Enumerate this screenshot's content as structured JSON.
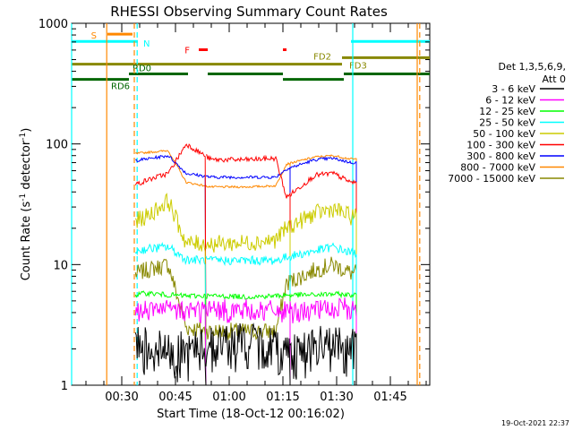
{
  "chart_data": {
    "type": "line",
    "title": "RHESSI Observing Summary Count Rates",
    "xlabel": "Start Time (18-Oct-12 00:16:02)",
    "ylabel_main": "Count Rate (s",
    "ylabel_sup1": "-1",
    "ylabel_mid": " detector",
    "ylabel_sup2": "-1",
    "ylabel_end": ")",
    "yscale": "log",
    "ylim": [
      1,
      1000
    ],
    "xlim_minutes": [
      16.0,
      116.0
    ],
    "x_ticks": [
      {
        "t": 30,
        "label": "00:30"
      },
      {
        "t": 45,
        "label": "00:45"
      },
      {
        "t": 60,
        "label": "01:00"
      },
      {
        "t": 75,
        "label": "01:15"
      },
      {
        "t": 90,
        "label": "01:30"
      },
      {
        "t": 105,
        "label": "01:45"
      }
    ],
    "y_ticks": [
      {
        "v": 1,
        "label": "1"
      },
      {
        "v": 10,
        "label": "10"
      },
      {
        "v": 100,
        "label": "100"
      },
      {
        "v": 1000,
        "label": "1000"
      }
    ],
    "legend_title1": "Det 1,3,5,6,9,",
    "legend_title2": "Att 0",
    "series": [
      {
        "name": "3 - 6 keV",
        "color": "#000000",
        "values": [
          2.2,
          2.2,
          1.9,
          1.9,
          2.2,
          2.3,
          2.1,
          1.9,
          2.1,
          2.2,
          2.0
        ]
      },
      {
        "name": "6 - 12 keV",
        "color": "#ff00ff",
        "values": [
          4.2,
          4.3,
          4.2,
          4.2,
          4.2,
          4.2,
          4.2,
          4.1,
          4.2,
          4.3,
          4.3
        ]
      },
      {
        "name": "12 - 25 keV",
        "color": "#00ff00",
        "values": [
          5.5,
          5.8,
          5.6,
          5.5,
          5.5,
          5.4,
          5.5,
          5.6,
          5.6,
          5.7,
          5.6
        ]
      },
      {
        "name": "25 - 50 keV",
        "color": "#00ffff",
        "values": [
          12.5,
          13.5,
          14.0,
          11.0,
          10.8,
          10.8,
          10.8,
          11.5,
          13.0,
          14.0,
          12.5
        ]
      },
      {
        "name": "50 - 100 keV",
        "color": "#cccc00",
        "values": [
          22.0,
          25.0,
          34.0,
          15.0,
          14.8,
          15.2,
          16.0,
          20.0,
          26.5,
          29.0,
          25.0
        ]
      },
      {
        "name": "100 - 300 keV",
        "color": "#ff0000",
        "values": [
          44.0,
          50.0,
          57.0,
          100.0,
          74.0,
          74.0,
          76.0,
          36.0,
          55.0,
          57.0,
          48.0
        ]
      },
      {
        "name": "300 - 800 keV",
        "color": "#0000ff",
        "values": [
          72.0,
          75.0,
          80.0,
          57.0,
          53.0,
          53.0,
          53.0,
          62.0,
          74.0,
          76.0,
          70.0
        ]
      },
      {
        "name": "800 - 7000 keV",
        "color": "#ff8800",
        "values": [
          82.0,
          85.0,
          88.0,
          48.0,
          44.0,
          44.0,
          45.0,
          68.0,
          78.0,
          80.0,
          75.0
        ]
      },
      {
        "name": "7000 - 15000 keV",
        "color": "#888800",
        "values": [
          8.0,
          9.0,
          10.0,
          3.0,
          2.8,
          2.8,
          2.8,
          7.0,
          9.0,
          10.0,
          8.5
        ]
      }
    ],
    "series_x_minutes": [
      32,
      37,
      43,
      48,
      55,
      65,
      73,
      76,
      84,
      89,
      94
    ],
    "event_labels": {
      "saa": "S",
      "night": "N",
      "flare": "F",
      "fd2": "FD2",
      "fd3": "FD3",
      "rd0": "RD0",
      "rd6": "RD6"
    },
    "bars": [
      {
        "key": "saa",
        "color": "#ff8800",
        "t0": 26.0,
        "t1": 33.0,
        "y": 0.03
      },
      {
        "key": "night",
        "color": "#00ffff",
        "t0": 16.0,
        "t1": 34.5,
        "y": 0.05
      },
      {
        "key": "night",
        "color": "#00ffff",
        "t0": 94.0,
        "t1": 116.0,
        "y": 0.05
      },
      {
        "key": "flare",
        "color": "#ff0000",
        "t0": 51.5,
        "t1": 54.0,
        "y": 0.073
      },
      {
        "key": "flare",
        "color": "#ff0000",
        "t0": 75.0,
        "t1": 76.0,
        "y": 0.073
      },
      {
        "key": "fd2",
        "color": "#888800",
        "t0": 16.0,
        "t1": 91.5,
        "y": 0.113
      },
      {
        "key": "fd3",
        "color": "#888800",
        "t0": 91.5,
        "t1": 116.0,
        "y": 0.095
      },
      {
        "key": "rd0",
        "color": "#006600",
        "t0": 32.0,
        "t1": 48.5,
        "y": 0.14
      },
      {
        "key": "rd0",
        "color": "#006600",
        "t0": 54.0,
        "t1": 75.0,
        "y": 0.14
      },
      {
        "key": "rd0",
        "color": "#006600",
        "t0": 92.0,
        "t1": 100.0,
        "y": 0.14
      },
      {
        "key": "rd0",
        "color": "#006600",
        "t0": 100.0,
        "t1": 116.0,
        "y": 0.14
      },
      {
        "key": "rd6",
        "color": "#006600",
        "t0": 16.0,
        "t1": 32.0,
        "y": 0.155
      },
      {
        "key": "rd6",
        "color": "#006600",
        "t0": 75.0,
        "t1": 92.0,
        "y": 0.155
      }
    ],
    "vlines": [
      {
        "t": 16.0,
        "color": "#00ffff",
        "dashed": false
      },
      {
        "t": 25.8,
        "color": "#ff8800",
        "dashed": false
      },
      {
        "t": 33.5,
        "color": "#ff8800",
        "dashed": true
      },
      {
        "t": 34.3,
        "color": "#00ffff",
        "dashed": true
      },
      {
        "t": 94.5,
        "color": "#00ffff",
        "dashed": false
      },
      {
        "t": 112.5,
        "color": "#ff8800",
        "dashed": false
      },
      {
        "t": 113.2,
        "color": "#ff8800",
        "dashed": true
      }
    ],
    "gap_segments": [
      [
        33.8,
        53.5
      ],
      [
        53.5,
        77.0
      ],
      [
        77.0,
        95.5
      ]
    ],
    "timestamp": "19-Oct-2021 22:37",
    "grid": false,
    "legend_position": "right"
  }
}
